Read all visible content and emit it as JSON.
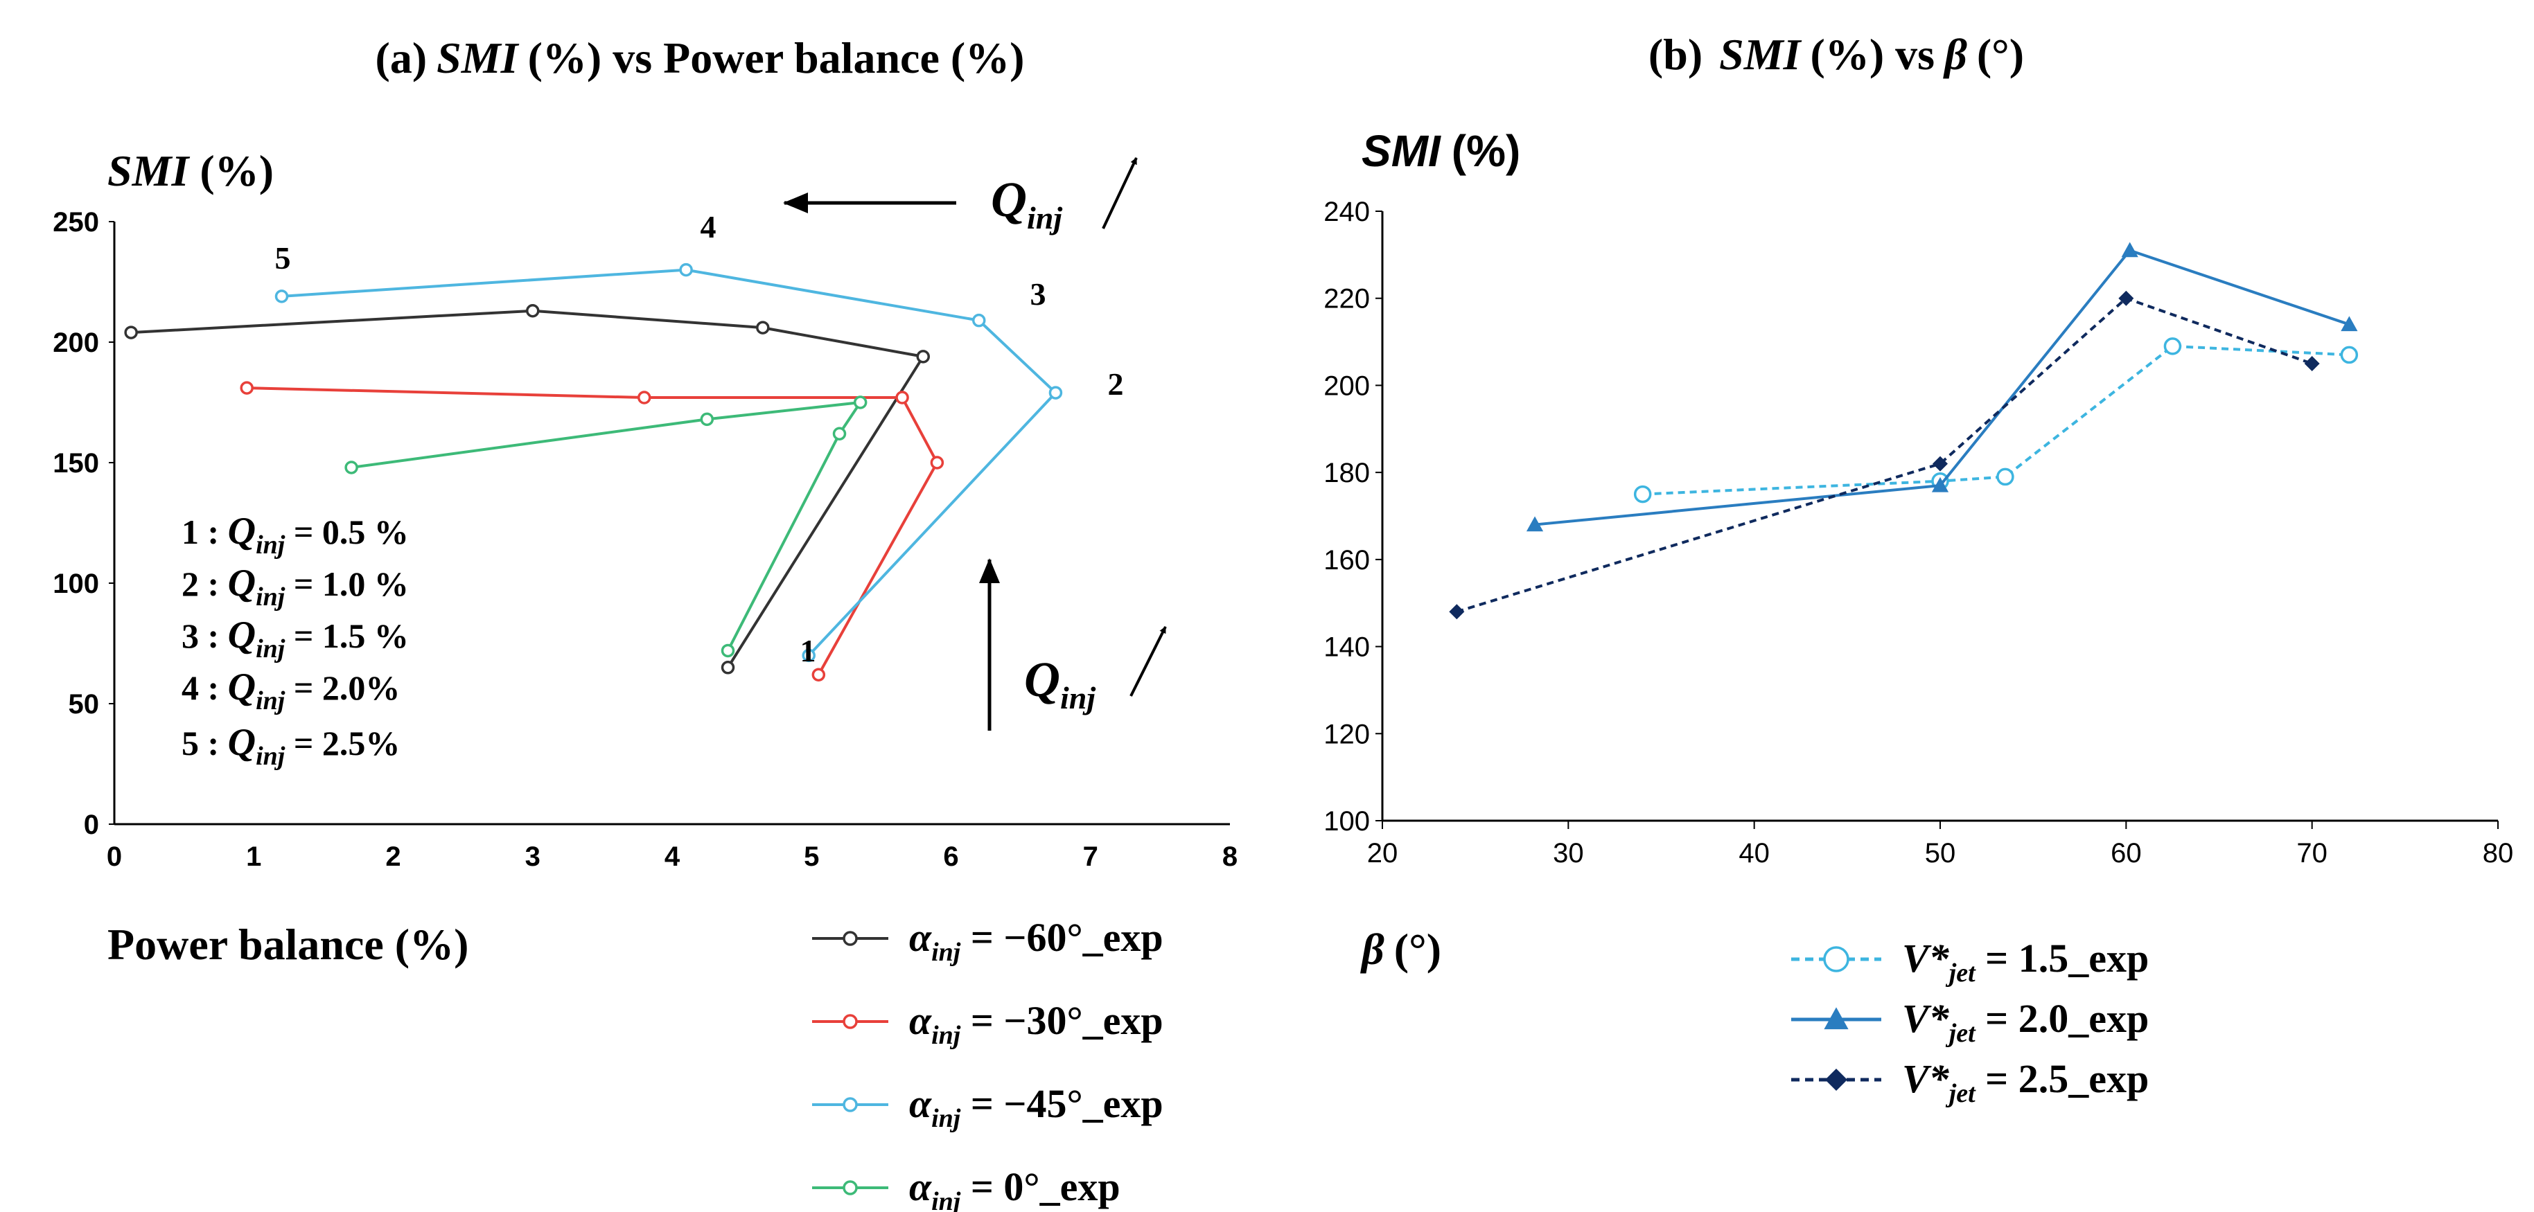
{
  "panels": {
    "a": {
      "title_prefix": "(a)",
      "title_var": "SMI",
      "title_rest": "(%) vs Power balance (%)",
      "ylabel_var": "SMI",
      "ylabel_unit": "(%)",
      "xlabel": "Power balance (%)",
      "flow_arrow_var": "Q",
      "flow_arrow_sub": "inj",
      "point_labels": [
        "1",
        "2",
        "3",
        "4",
        "5"
      ],
      "legend_lines": [
        {
          "num": "1 : ",
          "var": "Q",
          "sub": "inj",
          "rest": " = 0.5 %"
        },
        {
          "num": "2 : ",
          "var": "Q",
          "sub": "inj",
          "rest": " = 1.0 %"
        },
        {
          "num": "3 : ",
          "var": "Q",
          "sub": "inj",
          "rest": " = 1.5 %"
        },
        {
          "num": "4 : ",
          "var": "Q",
          "sub": "inj",
          "rest": " = 2.0%"
        },
        {
          "num": "5 : ",
          "var": "Q",
          "sub": "inj",
          "rest": " = 2.5%"
        }
      ]
    },
    "b": {
      "title_prefix": "(b)",
      "title_var": "SMI",
      "title_rest": "(%) vs",
      "title_beta": "β",
      "title_unit": "(°)",
      "ylabel_var": "SMI",
      "ylabel_unit": "(%)",
      "xlabel_var": "β",
      "xlabel_unit": "(°)"
    }
  },
  "chart_data": [
    {
      "type": "line",
      "xlim": [
        0,
        8
      ],
      "ylim": [
        0,
        250
      ],
      "xticks": [
        0,
        1,
        2,
        3,
        4,
        5,
        6,
        7,
        8
      ],
      "yticks": [
        0,
        50,
        100,
        150,
        200,
        250
      ],
      "grid": false,
      "legend_position": "bottom-right, outside plot",
      "series": [
        {
          "name": "α_inj = −60°_exp",
          "legend_var": "α",
          "legend_sub": "inj",
          "legend_rest": " = −60°_exp",
          "color": "#333333",
          "points": [
            [
              4.4,
              65
            ],
            [
              5.8,
              194
            ],
            [
              4.65,
              206
            ],
            [
              3.0,
              213
            ],
            [
              0.12,
              204
            ]
          ]
        },
        {
          "name": "α_inj = −30°_exp",
          "legend_var": "α",
          "legend_sub": "inj",
          "legend_rest": " = −30°_exp",
          "color": "#e8403a",
          "points": [
            [
              5.05,
              62
            ],
            [
              5.9,
              150
            ],
            [
              5.65,
              177
            ],
            [
              3.8,
              177
            ],
            [
              0.95,
              181
            ]
          ]
        },
        {
          "name": "α_inj = −45°_exp",
          "legend_var": "α",
          "legend_sub": "inj",
          "legend_rest": " = −45°_exp",
          "color": "#4eb6e0",
          "points": [
            [
              4.98,
              70
            ],
            [
              6.75,
              179
            ],
            [
              6.2,
              209
            ],
            [
              4.1,
              230
            ],
            [
              1.2,
              219
            ]
          ]
        },
        {
          "name": "α_inj = 0°_exp",
          "legend_var": "α",
          "legend_sub": "inj",
          "legend_rest": " = 0°_exp",
          "color": "#3dba78",
          "points": [
            [
              4.4,
              72
            ],
            [
              5.2,
              162
            ],
            [
              5.35,
              175
            ],
            [
              4.25,
              168
            ],
            [
              1.7,
              148
            ]
          ]
        }
      ]
    },
    {
      "type": "line",
      "xlim": [
        20,
        80
      ],
      "ylim": [
        100,
        240
      ],
      "xticks": [
        20,
        30,
        40,
        50,
        60,
        70,
        80
      ],
      "yticks": [
        100,
        120,
        140,
        160,
        180,
        200,
        220,
        240
      ],
      "grid": false,
      "legend_position": "bottom-center, outside plot",
      "series": [
        {
          "name": "V*jet = 1.5_exp",
          "legend_var": "V*",
          "legend_sub": "jet",
          "legend_rest": " = 1.5_exp",
          "color": "#3db5e0",
          "dash": true,
          "marker": "circle-open",
          "points": [
            [
              34,
              175
            ],
            [
              50,
              178
            ],
            [
              53.5,
              179
            ],
            [
              62.5,
              209
            ],
            [
              72,
              207
            ]
          ]
        },
        {
          "name": "V*jet = 2.0_exp",
          "legend_var": "V*",
          "legend_sub": "jet",
          "legend_rest": " = 2.0_exp",
          "color": "#2a7dc0",
          "dash": false,
          "marker": "triangle",
          "points": [
            [
              28.2,
              168
            ],
            [
              50,
              177
            ],
            [
              60.2,
              231
            ],
            [
              72,
              214
            ]
          ]
        },
        {
          "name": "V*jet = 2.5_exp",
          "legend_var": "V*",
          "legend_sub": "jet",
          "legend_rest": " = 2.5_exp",
          "color": "#0f2a5e",
          "dash": true,
          "marker": "diamond",
          "points": [
            [
              24,
              148
            ],
            [
              50,
              182
            ],
            [
              60,
              220
            ],
            [
              70,
              205
            ]
          ]
        }
      ]
    }
  ]
}
